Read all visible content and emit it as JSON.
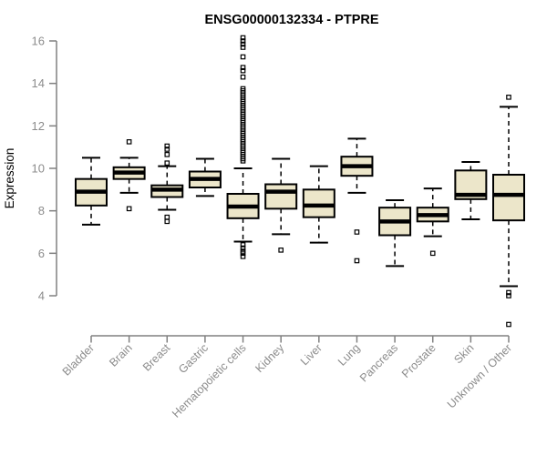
{
  "chart_data": {
    "type": "box",
    "title": "ENSG00000132334 - PTPRE",
    "xlabel": "",
    "ylabel": "Expression",
    "ylim": [
      4,
      16
    ],
    "yticks": [
      4,
      6,
      8,
      10,
      12,
      14,
      16
    ],
    "grid": false,
    "legend": "none",
    "categories": [
      "Bladder",
      "Brain",
      "Breast",
      "Gastric",
      "Hematopoietic cells",
      "Kidney",
      "Liver",
      "Lung",
      "Pancreas",
      "Prostate",
      "Skin",
      "Unknown / Other"
    ],
    "series": [
      {
        "name": "Bladder",
        "whislo": 7.35,
        "q1": 8.25,
        "med": 8.9,
        "q3": 9.5,
        "whishi": 10.5,
        "outliers": []
      },
      {
        "name": "Brain",
        "whislo": 8.85,
        "q1": 9.5,
        "med": 9.8,
        "q3": 10.05,
        "whishi": 10.5,
        "outliers": [
          11.25,
          8.1
        ]
      },
      {
        "name": "Breast",
        "whislo": 8.05,
        "q1": 8.65,
        "med": 9.0,
        "q3": 9.2,
        "whishi": 10.1,
        "outliers": [
          11.05,
          10.9,
          10.65,
          10.25,
          7.7,
          7.5
        ]
      },
      {
        "name": "Gastric",
        "whislo": 8.7,
        "q1": 9.1,
        "med": 9.5,
        "q3": 9.85,
        "whishi": 10.45,
        "outliers": []
      },
      {
        "name": "Hematopoietic cells",
        "whislo": 6.55,
        "q1": 7.65,
        "med": 8.2,
        "q3": 8.8,
        "whishi": 10.0,
        "outliers": [
          16.15,
          16.0,
          15.85,
          15.7,
          15.25,
          14.75,
          14.6,
          14.3,
          13.75,
          13.65,
          13.55,
          13.45,
          13.35,
          13.25,
          13.15,
          13.05,
          12.95,
          12.85,
          12.75,
          12.65,
          12.55,
          12.45,
          12.35,
          12.25,
          12.15,
          12.05,
          11.95,
          11.85,
          11.75,
          11.65,
          11.55,
          11.45,
          11.35,
          11.25,
          11.15,
          11.05,
          10.95,
          10.85,
          10.75,
          10.65,
          10.55,
          10.45,
          10.35,
          6.4,
          6.25,
          6.1,
          6.0,
          5.85
        ]
      },
      {
        "name": "Kidney",
        "whislo": 6.9,
        "q1": 8.1,
        "med": 8.9,
        "q3": 9.25,
        "whishi": 10.45,
        "outliers": [
          6.15
        ]
      },
      {
        "name": "Liver",
        "whislo": 6.5,
        "q1": 7.7,
        "med": 8.25,
        "q3": 9.0,
        "whishi": 10.1,
        "outliers": []
      },
      {
        "name": "Lung",
        "whislo": 8.85,
        "q1": 9.65,
        "med": 10.1,
        "q3": 10.55,
        "whishi": 11.4,
        "outliers": [
          7.0,
          5.65
        ]
      },
      {
        "name": "Pancreas",
        "whislo": 5.4,
        "q1": 6.85,
        "med": 7.5,
        "q3": 8.15,
        "whishi": 8.5,
        "outliers": []
      },
      {
        "name": "Prostate",
        "whislo": 6.8,
        "q1": 7.5,
        "med": 7.8,
        "q3": 8.15,
        "whishi": 9.05,
        "outliers": [
          6.0
        ]
      },
      {
        "name": "Skin",
        "whislo": 7.6,
        "q1": 8.55,
        "med": 8.75,
        "q3": 9.9,
        "whishi": 10.3,
        "outliers": []
      },
      {
        "name": "Unknown / Other",
        "whislo": 4.45,
        "q1": 7.55,
        "med": 8.75,
        "q3": 9.7,
        "whishi": 12.9,
        "outliers": [
          13.35,
          4.15,
          4.0,
          2.65
        ]
      }
    ],
    "colors": {
      "box_fill": "#ECE6CA",
      "box_border": "#000000",
      "median": "#000000",
      "whisker": "#000000",
      "outlier": "#000000",
      "axis_line": "#808080",
      "tick_text": "#8C8C8C",
      "title_text": "#000000"
    }
  }
}
